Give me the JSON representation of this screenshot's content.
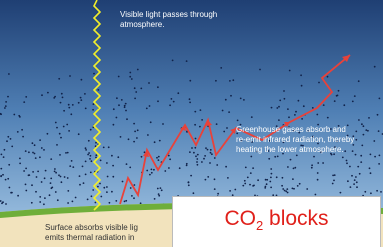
{
  "labels": {
    "visible_light": [
      "Visible light passes through",
      "atmosphere."
    ],
    "greenhouse": [
      "Greenhouse gases absorb and",
      "re-emit infrared radiation, thereby",
      "heating the lower atmosphere."
    ],
    "surface": [
      "Surface absorbs visible lig",
      "emits thermal radiation in"
    ]
  },
  "callout": {
    "prefix": "CO",
    "subscript": "2",
    "suffix": " blocks"
  }
}
